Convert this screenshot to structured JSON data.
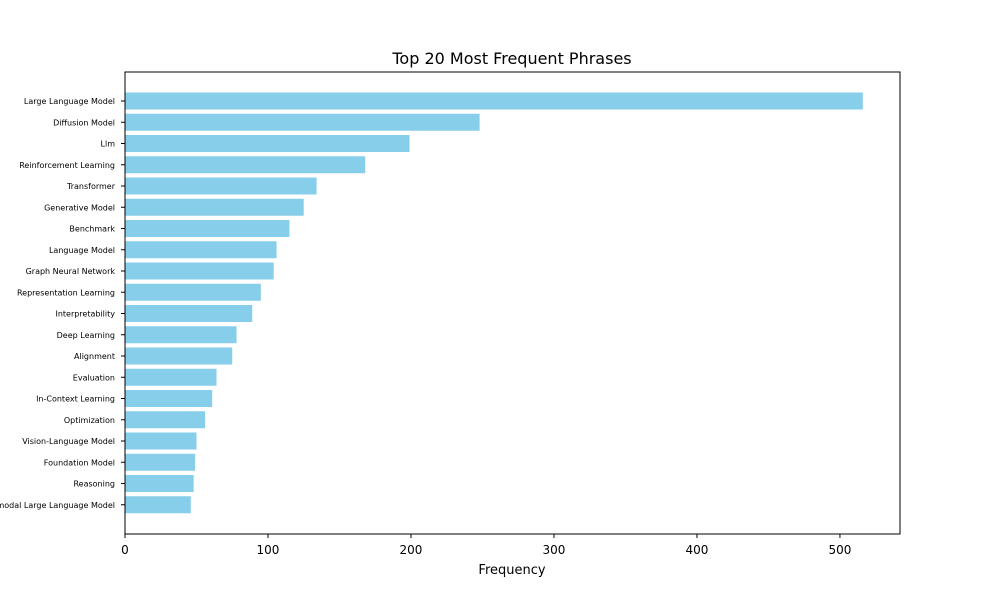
{
  "chart_data": {
    "type": "bar",
    "orientation": "horizontal",
    "title": "Top 20 Most Frequent Phrases",
    "xlabel": "Frequency",
    "ylabel": "",
    "xlim": [
      0,
      542
    ],
    "xticks": [
      0,
      100,
      200,
      300,
      400,
      500
    ],
    "bar_color": "#87CEEB",
    "categories": [
      "Large Language Model",
      "Diffusion Model",
      "Llm",
      "Reinforcement Learning",
      "Transformer",
      "Generative Model",
      "Benchmark",
      "Language Model",
      "Graph Neural Network",
      "Representation Learning",
      "Interpretability",
      "Deep Learning",
      "Alignment",
      "Evaluation",
      "In-Context Learning",
      "Optimization",
      "Vision-Language Model",
      "Foundation Model",
      "Reasoning",
      "Multimodal Large Language Model"
    ],
    "values": [
      516,
      248,
      199,
      168,
      134,
      125,
      115,
      106,
      104,
      95,
      89,
      78,
      75,
      64,
      61,
      56,
      50,
      49,
      48,
      46
    ]
  }
}
